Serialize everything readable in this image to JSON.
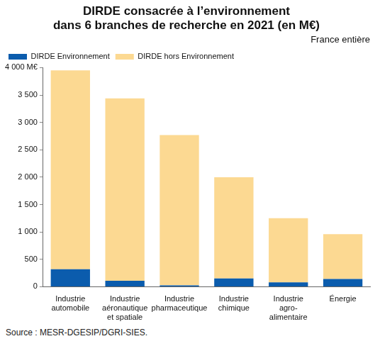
{
  "chart_data": {
    "type": "bar",
    "title": [
      "DIRDE consacrée à l’environnement",
      "dans 6 branches de recherche en 2021 (en M€)"
    ],
    "subtitle": "France entière",
    "source": "Source : MESR-DGESIP/DGRI-SIES.",
    "categories": [
      [
        "Industrie",
        "automobile"
      ],
      [
        "Industrie",
        "aéronautique",
        "et spatiale"
      ],
      [
        "Industrie",
        "pharmaceutique"
      ],
      [
        "Industrie",
        "chimique"
      ],
      [
        "Industrie",
        "agro-",
        "alimentaire"
      ],
      [
        "Énergie"
      ]
    ],
    "series": [
      {
        "name": "DIRDE Environnement",
        "color": "#0b5cad",
        "values": [
          320,
          110,
          25,
          150,
          80,
          140
        ]
      },
      {
        "name": "DIRDE hors Environnement",
        "color": "#fcd992",
        "values": [
          3630,
          3330,
          2745,
          1850,
          1170,
          820
        ]
      }
    ],
    "ylim": [
      0,
      4000
    ],
    "yticks": [
      0,
      500,
      {
        "value": 1000,
        "label": "1 000"
      },
      {
        "value": 1500,
        "label": "1 500"
      },
      {
        "value": 2000,
        "label": "2 000"
      },
      {
        "value": 2500,
        "label": "2 500"
      },
      {
        "value": 3000,
        "label": "3 000"
      },
      {
        "value": 3500,
        "label": "3 500"
      },
      {
        "value": 4000,
        "label": "4 000 M€"
      }
    ],
    "stacked": true,
    "grid": false,
    "legend": "top-left"
  }
}
